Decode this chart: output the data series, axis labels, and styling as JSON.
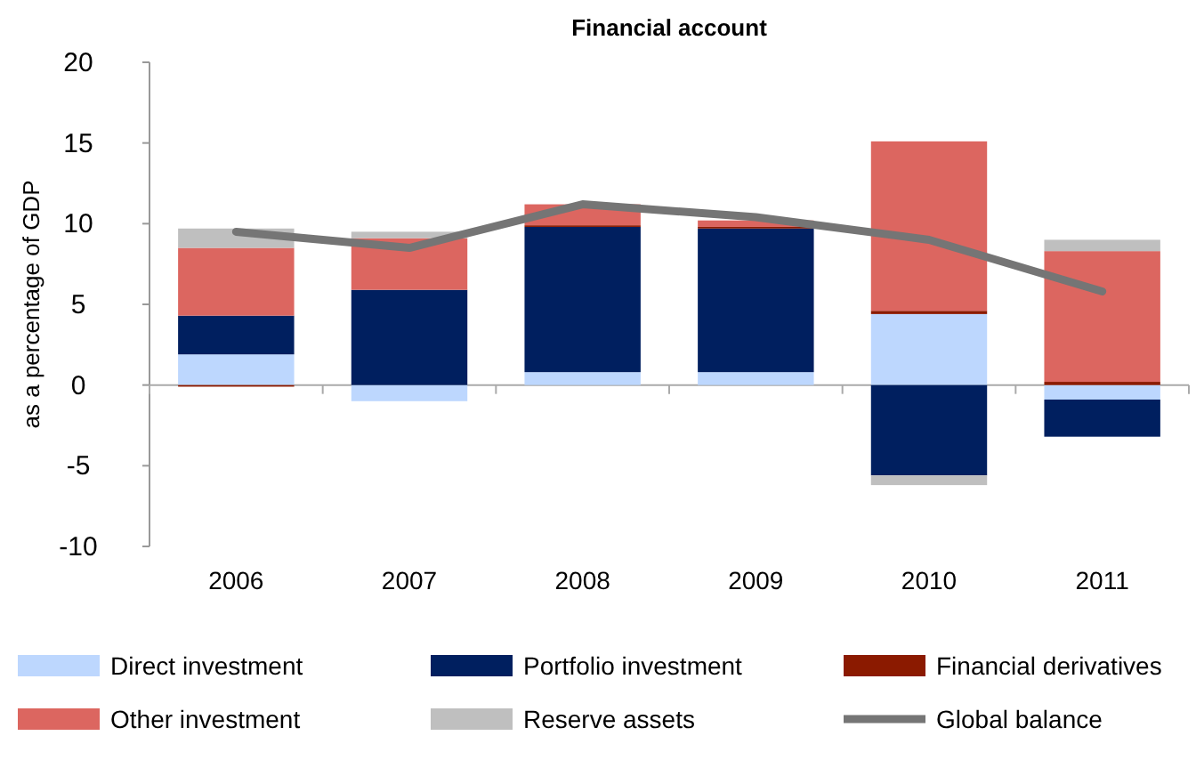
{
  "chart_data": {
    "type": "bar",
    "title": "Financial account",
    "ylabel": "as a percentage of GDP",
    "categories": [
      "2006",
      "2007",
      "2008",
      "2009",
      "2010",
      "2011"
    ],
    "stacked": true,
    "series": [
      {
        "name": "Direct investment",
        "color": "#bdd7fe",
        "values": [
          1.9,
          -1.0,
          0.8,
          0.8,
          4.4,
          -0.9
        ]
      },
      {
        "name": "Portfolio investment",
        "color": "#001f5f",
        "values": [
          2.4,
          5.9,
          9.0,
          8.9,
          -5.6,
          -2.3
        ]
      },
      {
        "name": "Financial derivatives",
        "color": "#8b1a00",
        "values": [
          -0.1,
          0.0,
          0.1,
          0.1,
          0.2,
          0.2
        ]
      },
      {
        "name": "Other investment",
        "color": "#dc6660",
        "values": [
          4.2,
          3.2,
          1.3,
          0.4,
          10.5,
          8.1
        ]
      },
      {
        "name": "Reserve assets",
        "color": "#bfbfbf",
        "values": [
          1.2,
          0.4,
          0.0,
          0.0,
          -0.6,
          0.7
        ]
      },
      {
        "name": "Global balance",
        "type": "line",
        "color": "#757575",
        "values": [
          9.5,
          8.5,
          11.2,
          10.4,
          9.0,
          5.8
        ]
      }
    ],
    "ylim": [
      -10,
      20
    ],
    "yticks": [
      -10,
      -5,
      0,
      5,
      10,
      15,
      20
    ],
    "legend": "bottom"
  }
}
